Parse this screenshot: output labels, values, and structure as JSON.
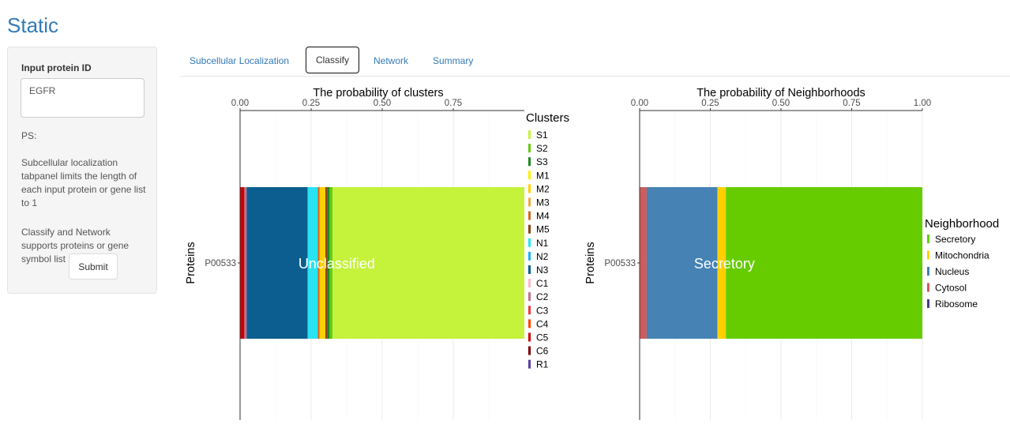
{
  "app": {
    "title": "Static"
  },
  "sidebar": {
    "input_label": "Input protein ID",
    "input_value": "EGFR",
    "ps_label": "PS:",
    "note1": "Subcellular localization tabpanel limits the length of each input protein or gene list to 1",
    "note2": "Classify and Network supports proteins or gene symbol list",
    "submit_label": "Submit"
  },
  "tabs": [
    {
      "label": "Subcellular Localization",
      "active": false
    },
    {
      "label": "Classify",
      "active": true
    },
    {
      "label": "Network",
      "active": false
    },
    {
      "label": "Summary",
      "active": false
    }
  ],
  "chart_data": [
    {
      "type": "bar",
      "orientation": "horizontal-stacked",
      "title": "The probability of clusters",
      "ylabel": "Proteins",
      "categories": [
        "P00533"
      ],
      "xlim": [
        0,
        1
      ],
      "x_ticks": [
        "0.00",
        "0.25",
        "0.50",
        "0.75"
      ],
      "bar_label": "Unclassified",
      "grid": true,
      "legend": {
        "title": "Clusters",
        "placement": "right",
        "entries": [
          {
            "name": "S1",
            "color": "#c5f23a"
          },
          {
            "name": "S2",
            "color": "#64cc16"
          },
          {
            "name": "S3",
            "color": "#1f8a1f"
          },
          {
            "name": "M1",
            "color": "#ffee00"
          },
          {
            "name": "M2",
            "color": "#ffd000"
          },
          {
            "name": "M3",
            "color": "#f2a93b"
          },
          {
            "name": "M4",
            "color": "#d2691e"
          },
          {
            "name": "M5",
            "color": "#8b4513"
          },
          {
            "name": "N1",
            "color": "#29e3f2"
          },
          {
            "name": "N2",
            "color": "#1ab2f0"
          },
          {
            "name": "N3",
            "color": "#0b5e8f"
          },
          {
            "name": "C1",
            "color": "#ffb6c8"
          },
          {
            "name": "C2",
            "color": "#c0708f"
          },
          {
            "name": "C3",
            "color": "#ee3a3a"
          },
          {
            "name": "C4",
            "color": "#ff4500"
          },
          {
            "name": "C5",
            "color": "#cc0000"
          },
          {
            "name": "C6",
            "color": "#7a0000"
          },
          {
            "name": "R1",
            "color": "#5b3fa0"
          }
        ]
      },
      "series": [
        {
          "name": "C5",
          "values": [
            0.015
          ],
          "color": "#cc0000"
        },
        {
          "name": "C2",
          "values": [
            0.008
          ],
          "color": "#c0708f"
        },
        {
          "name": "Unclassified",
          "values": [
            0.215
          ],
          "color": "#0b5e8f"
        },
        {
          "name": "N1",
          "values": [
            0.035
          ],
          "color": "#29e3f2"
        },
        {
          "name": "M4",
          "values": [
            0.007
          ],
          "color": "#d2691e"
        },
        {
          "name": "M2",
          "values": [
            0.02
          ],
          "color": "#ffd000"
        },
        {
          "name": "M5",
          "values": [
            0.008
          ],
          "color": "#8b4513"
        },
        {
          "name": "S3",
          "values": [
            0.007
          ],
          "color": "#1f8a1f"
        },
        {
          "name": "S2",
          "values": [
            0.01
          ],
          "color": "#64cc16"
        },
        {
          "name": "S1",
          "values": [
            0.675
          ],
          "color": "#c5f23a"
        }
      ]
    },
    {
      "type": "bar",
      "orientation": "horizontal-stacked",
      "title": "The probability of Neighborhoods",
      "ylabel": "Proteins",
      "categories": [
        "P00533"
      ],
      "xlim": [
        0,
        1
      ],
      "x_ticks": [
        "0.00",
        "0.25",
        "0.50",
        "0.75",
        "1.00"
      ],
      "bar_label": "Secretory",
      "grid": true,
      "legend": {
        "title": "Neighborhood",
        "placement": "right",
        "entries": [
          {
            "name": "Secretory",
            "color": "#66cc00"
          },
          {
            "name": "Mitochondria",
            "color": "#ffd000"
          },
          {
            "name": "Nucleus",
            "color": "#4682b4"
          },
          {
            "name": "Cytosol",
            "color": "#cd5c5c"
          },
          {
            "name": "Ribosome",
            "color": "#483d8b"
          }
        ]
      },
      "series": [
        {
          "name": "Cytosol",
          "values": [
            0.025
          ],
          "color": "#cd5c5c"
        },
        {
          "name": "Nucleus",
          "values": [
            0.25
          ],
          "color": "#4682b4"
        },
        {
          "name": "Mitochondria",
          "values": [
            0.03
          ],
          "color": "#ffd000"
        },
        {
          "name": "Secretory",
          "values": [
            0.695
          ],
          "color": "#66cc00"
        }
      ]
    }
  ]
}
